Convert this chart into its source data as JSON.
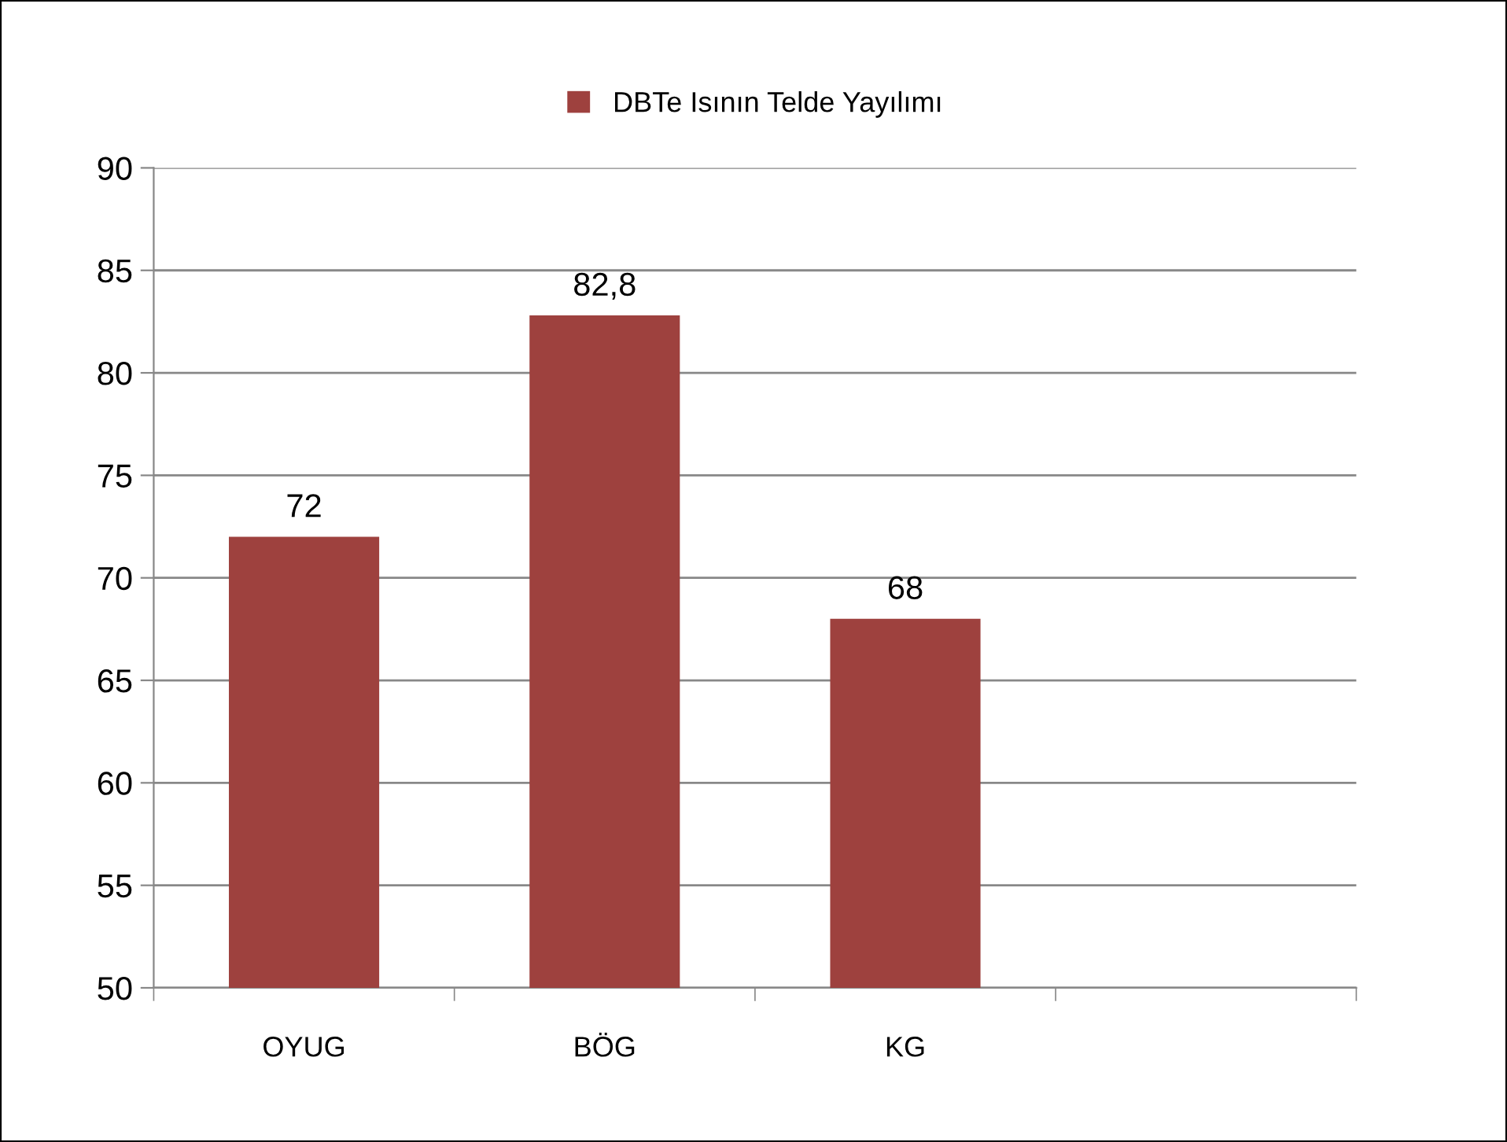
{
  "chart_data": {
    "type": "bar",
    "categories": [
      "OYUG",
      "BÖG",
      "KG",
      null
    ],
    "series": [
      {
        "name": "DBTe Isının Telde Yayılımı",
        "color": "#9e413e",
        "values": [
          72,
          82.8,
          68,
          null
        ],
        "value_labels": [
          "72",
          "82,8",
          "68",
          null
        ]
      }
    ],
    "ylim": [
      50,
      90
    ],
    "yticks": [
      50,
      55,
      60,
      65,
      70,
      75,
      80,
      85,
      90
    ],
    "grid": "y",
    "legend": "top"
  }
}
